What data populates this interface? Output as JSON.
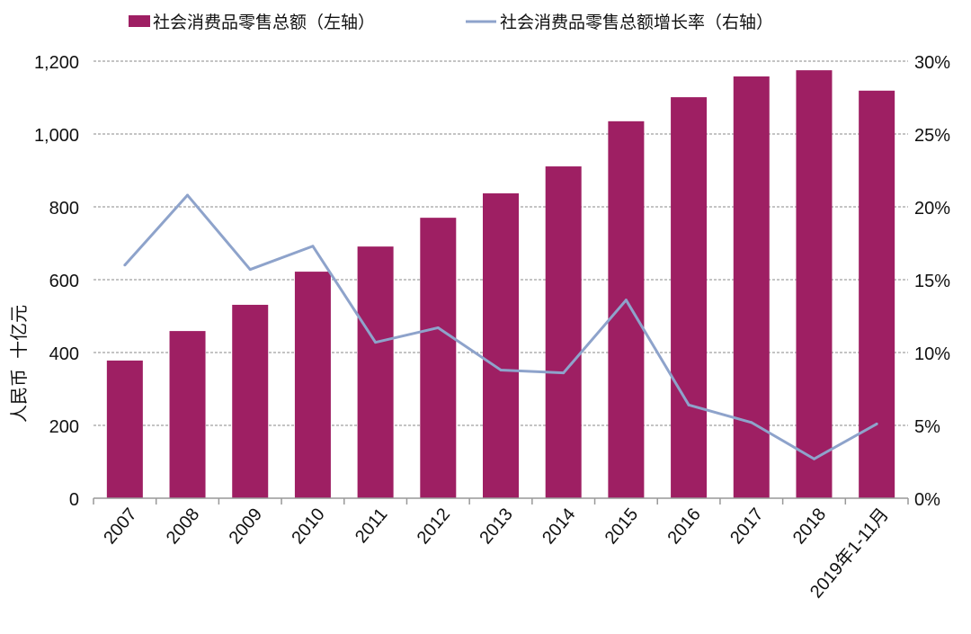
{
  "chart_data": {
    "type": "bar+line",
    "title": "",
    "categories": [
      "2007",
      "2008",
      "2009",
      "2010",
      "2011",
      "2012",
      "2013",
      "2014",
      "2015",
      "2016",
      "2017",
      "2018",
      "2019年1-11月"
    ],
    "series": [
      {
        "name": "社会消费品零售总额（左轴）",
        "type": "bar",
        "axis": "left",
        "color": "#9E1F63",
        "values": [
          378,
          459,
          531,
          622,
          691,
          770,
          837,
          911,
          1035,
          1101,
          1158,
          1175,
          1119
        ]
      },
      {
        "name": "社会消费品零售总额增长率（右轴）",
        "type": "line",
        "axis": "right",
        "color": "#8EA3CB",
        "values": [
          16.0,
          20.8,
          15.7,
          17.3,
          10.7,
          11.7,
          8.8,
          8.6,
          13.6,
          6.4,
          5.2,
          2.7,
          5.1
        ]
      }
    ],
    "ylabel": "人民币  十亿元",
    "ylim": [
      0,
      1200
    ],
    "yticks": [
      "0",
      "200",
      "400",
      "600",
      "800",
      "1,000",
      "1,200"
    ],
    "y2lim": [
      0,
      30
    ],
    "y2ticks": [
      "0%",
      "5%",
      "10%",
      "15%",
      "20%",
      "25%",
      "30%"
    ],
    "grid": true,
    "legend_position": "top"
  }
}
